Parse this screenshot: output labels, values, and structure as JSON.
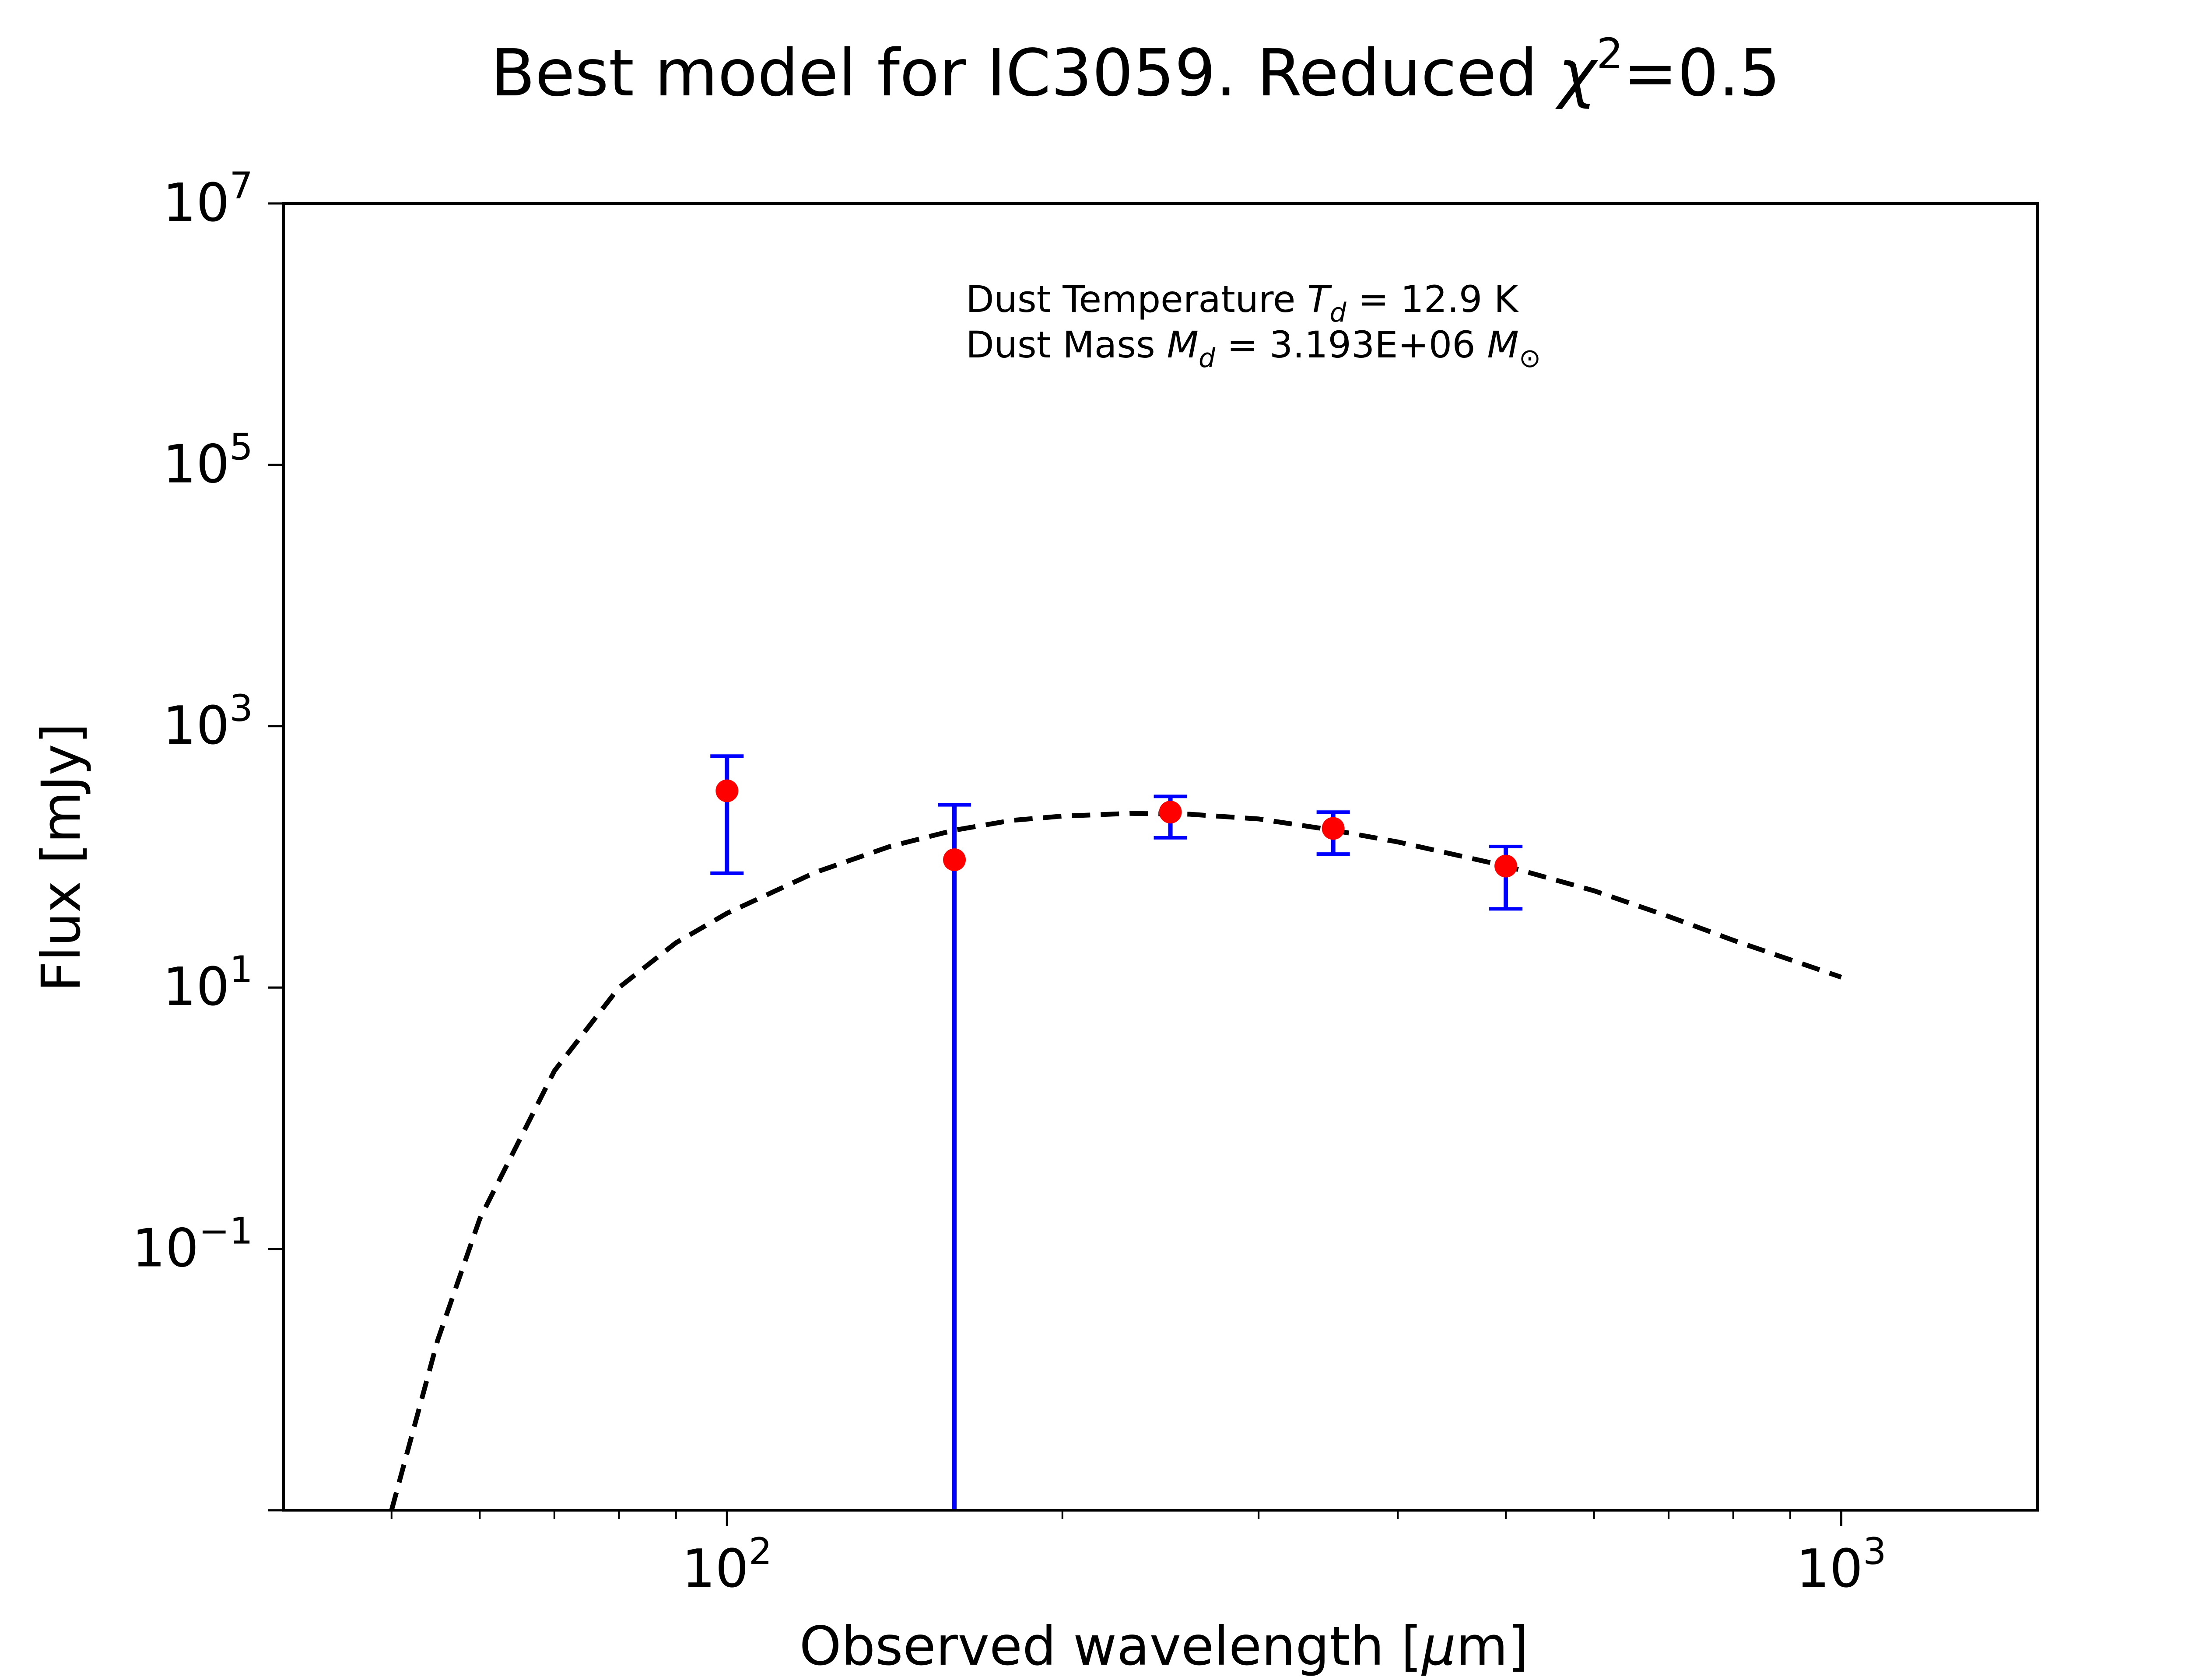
{
  "chart_data": {
    "type": "scatter",
    "title": "Best model for IC3059. Reduced χ²=0.5",
    "title_parts": {
      "prefix": "Best model for IC3059. Reduced ",
      "chi": "χ",
      "sup": "2",
      "suffix": "=0.5"
    },
    "xlabel": "Observed wavelength [μm]",
    "xlabel_parts": {
      "prefix": "Observed wavelength [",
      "mu": "μ",
      "suffix": "m]"
    },
    "ylabel": "Flux [mJy]",
    "x_scale": "log",
    "y_scale": "log",
    "xlim": [
      40,
      1500
    ],
    "ylim": [
      0.001,
      10000000
    ],
    "x_ticks": [
      {
        "value": 100,
        "base": "10",
        "exp": "2"
      },
      {
        "value": 1000,
        "base": "10",
        "exp": "3"
      }
    ],
    "y_ticks": [
      {
        "value": 0.1,
        "base": "10",
        "exp": "−1"
      },
      {
        "value": 10,
        "base": "10",
        "exp": "1"
      },
      {
        "value": 1000,
        "base": "10",
        "exp": "3"
      },
      {
        "value": 100000,
        "base": "10",
        "exp": "5"
      },
      {
        "value": 10000000,
        "base": "10",
        "exp": "7"
      }
    ],
    "grid": false,
    "series": [
      {
        "kind": "observed",
        "marker_color": "#ff0000",
        "errorbar_color": "#0000ff",
        "points": [
          {
            "x": 100,
            "y": 320,
            "err_low": 245,
            "err_high": 270
          },
          {
            "x": 160,
            "y": 95,
            "err_low": 95,
            "err_high": 155
          },
          {
            "x": 250,
            "y": 220,
            "err_low": 80,
            "err_high": 70
          },
          {
            "x": 350,
            "y": 165,
            "err_low": 60,
            "err_high": 55
          },
          {
            "x": 500,
            "y": 85,
            "err_low": 45,
            "err_high": 35
          }
        ]
      },
      {
        "kind": "model",
        "line_style": "dashed",
        "color": "#000000",
        "points": [
          {
            "x": 50,
            "y": 0.001
          },
          {
            "x": 55,
            "y": 0.02
          },
          {
            "x": 60,
            "y": 0.17
          },
          {
            "x": 70,
            "y": 2.3
          },
          {
            "x": 80,
            "y": 10
          },
          {
            "x": 90,
            "y": 22
          },
          {
            "x": 100,
            "y": 37
          },
          {
            "x": 120,
            "y": 76
          },
          {
            "x": 140,
            "y": 120
          },
          {
            "x": 160,
            "y": 160
          },
          {
            "x": 180,
            "y": 190
          },
          {
            "x": 200,
            "y": 205
          },
          {
            "x": 230,
            "y": 215
          },
          {
            "x": 260,
            "y": 212
          },
          {
            "x": 300,
            "y": 195
          },
          {
            "x": 350,
            "y": 160
          },
          {
            "x": 400,
            "y": 130
          },
          {
            "x": 500,
            "y": 85
          },
          {
            "x": 600,
            "y": 55
          },
          {
            "x": 700,
            "y": 35
          },
          {
            "x": 800,
            "y": 23
          },
          {
            "x": 1000,
            "y": 12
          }
        ]
      }
    ],
    "annotations": {
      "line1": {
        "prefix": "Dust Temperature ",
        "sym": "T",
        "sub": "d",
        "suffix": " = 12.9 K"
      },
      "line2": {
        "prefix": "Dust Mass ",
        "sym": "M",
        "sub": "d",
        "mid": " = 3.193E+06 ",
        "sym2": "M",
        "sub2": "⊙"
      }
    }
  }
}
